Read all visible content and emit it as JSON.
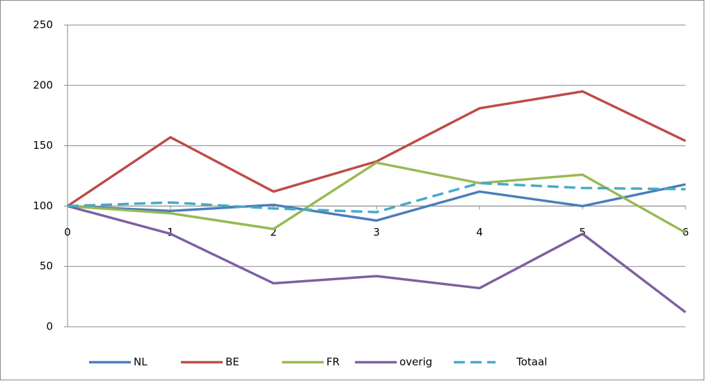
{
  "chart_data": {
    "type": "line",
    "x": [
      0,
      1,
      2,
      3,
      4,
      5,
      6
    ],
    "xlim": [
      0,
      6
    ],
    "xticks": [
      0,
      1,
      2,
      3,
      4,
      5,
      6
    ],
    "ylim": [
      0,
      250
    ],
    "yticks": [
      0,
      50,
      100,
      150,
      200,
      250
    ],
    "xaxis_crosses": 100,
    "grid": true,
    "legend": "bottom",
    "series": [
      {
        "name": "NL",
        "color": "#4a7ebb",
        "values": [
          100,
          96,
          101,
          88,
          112,
          100,
          118
        ]
      },
      {
        "name": "BE",
        "color": "#be4b48",
        "values": [
          100,
          157,
          112,
          137,
          181,
          195,
          154
        ]
      },
      {
        "name": "FR",
        "color": "#98b954",
        "values": [
          100,
          94,
          81,
          136,
          119,
          126,
          78
        ]
      },
      {
        "name": "overig",
        "color": "#7d60a0",
        "values": [
          100,
          77,
          36,
          42,
          32,
          77,
          12
        ]
      },
      {
        "name": "Totaal",
        "color": "#46aac5",
        "values": [
          100,
          103,
          98,
          95,
          119,
          115,
          114
        ],
        "dashed": true
      }
    ]
  }
}
